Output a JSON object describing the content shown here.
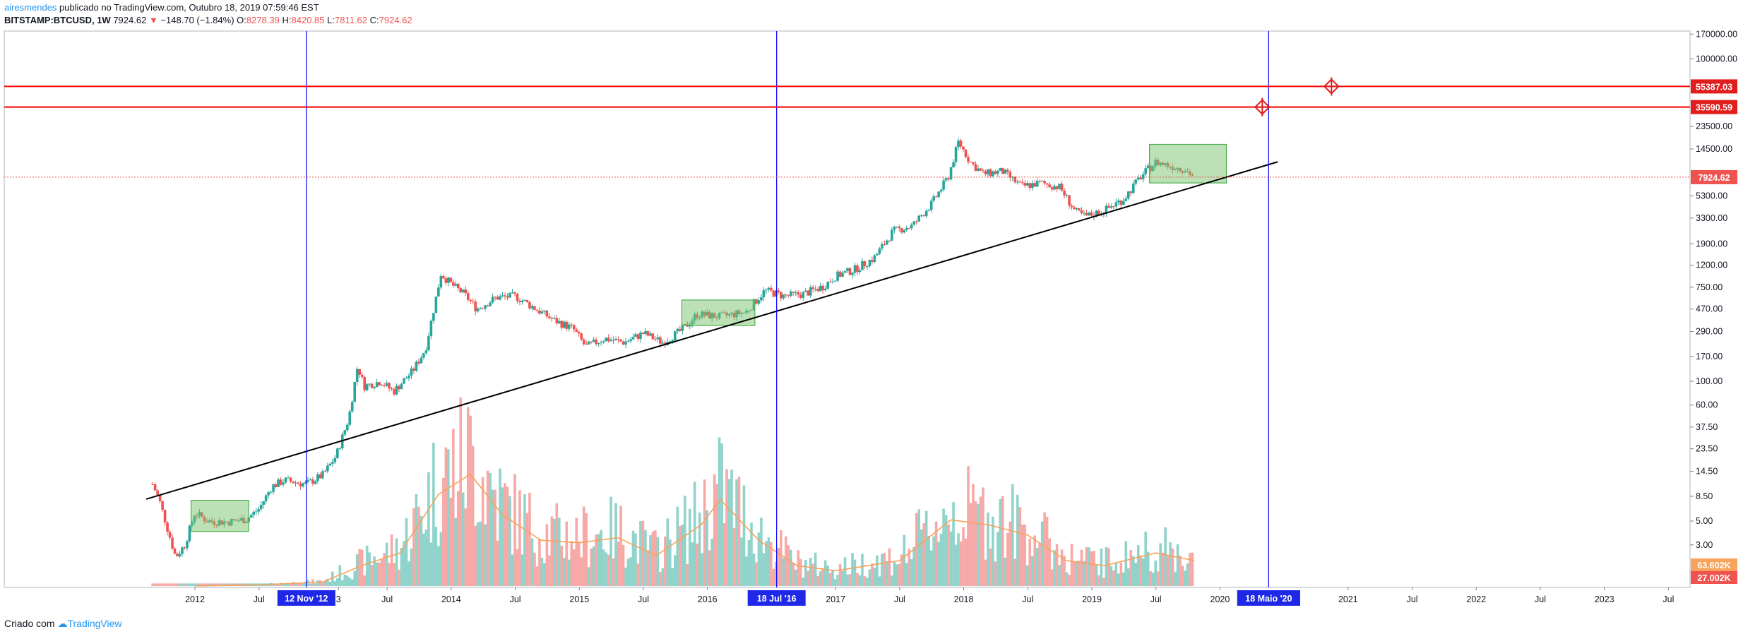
{
  "header": {
    "author": "airesmendes",
    "published": " publicado no TradingView.com, Outubro 18, 2019 07:59:46 EST",
    "symbol": "BITSTAMP:BTCUSD, 1W",
    "last": "7924.62",
    "change_arrow": "▼",
    "change": "−148.70 (−1.84%)",
    "o_label": "O:",
    "o": "8278.39",
    "h_label": "H:",
    "h": "8420.85",
    "l_label": "L:",
    "l": "7811.62",
    "c_label": "C:",
    "c": "7924.62"
  },
  "footer": {
    "text": "Criado com",
    "brand": "TradingView"
  },
  "colors": {
    "up": "#26a69a",
    "down": "#ef5350",
    "ma": "#f7a35c",
    "hline": "#ff0000",
    "vline": "#0000ff",
    "trend": "#000000",
    "box": "#7cc36e"
  },
  "chart_data": {
    "type": "candlestick",
    "symbol": "BITSTAMP:BTCUSD",
    "interval": "1W",
    "yscale": "log",
    "ylim": [
      0.9,
      200000
    ],
    "y_ticks": [
      "170000.00",
      "100000.00",
      "55387.03",
      "35590.59",
      "23500.00",
      "14500.00",
      "7924.62",
      "5300.00",
      "3300.00",
      "1900.00",
      "1200.00",
      "750.00",
      "470.00",
      "290.00",
      "170.00",
      "100.00",
      "60.00",
      "37.50",
      "23.50",
      "14.50",
      "8.50",
      "5.00",
      "3.00",
      "63.602K",
      "27.002K"
    ],
    "y_tick_values": [
      170000,
      100000,
      55387.03,
      35590.59,
      23500,
      14500,
      7924.62,
      5300,
      3300,
      1900,
      1200,
      750,
      470,
      290,
      170,
      100,
      60,
      37.5,
      23.5,
      14.5,
      8.5,
      5,
      3,
      null,
      null
    ],
    "x_ticks": [
      "2012",
      "Jul",
      "12 Nov '12",
      "3",
      "Jul",
      "2014",
      "Jul",
      "2015",
      "Jul",
      "2016",
      "18 Jul '16",
      "2017",
      "Jul",
      "2018",
      "Jul",
      "2019",
      "Jul",
      "2020",
      "18 Maio '20",
      "2021",
      "Jul",
      "2022",
      "Jul",
      "2023",
      "Jul"
    ],
    "x_tick_dates": [
      2012.0,
      2012.5,
      2012.87,
      2013.12,
      2013.5,
      2014.0,
      2014.5,
      2015.0,
      2015.5,
      2016.0,
      2016.54,
      2017.0,
      2017.5,
      2018.0,
      2018.5,
      2019.0,
      2019.5,
      2020.0,
      2020.38,
      2021.0,
      2021.5,
      2022.0,
      2022.5,
      2023.0,
      2023.5
    ],
    "highlighted_x_ticks": [
      "12 Nov '12",
      "18 Jul '16",
      "18 Maio '20"
    ],
    "price_path": [
      [
        2011.67,
        11.0
      ],
      [
        2011.72,
        8.0
      ],
      [
        2011.78,
        4.5
      ],
      [
        2011.85,
        2.3
      ],
      [
        2011.92,
        3.0
      ],
      [
        2012.0,
        6.0
      ],
      [
        2012.1,
        5.0
      ],
      [
        2012.25,
        4.9
      ],
      [
        2012.4,
        5.2
      ],
      [
        2012.5,
        6.5
      ],
      [
        2012.6,
        10.5
      ],
      [
        2012.7,
        12.0
      ],
      [
        2012.87,
        11.0
      ],
      [
        2013.0,
        13.5
      ],
      [
        2013.1,
        20.0
      ],
      [
        2013.2,
        45.0
      ],
      [
        2013.27,
        140.0
      ],
      [
        2013.32,
        90.0
      ],
      [
        2013.45,
        100.0
      ],
      [
        2013.55,
        80.0
      ],
      [
        2013.7,
        125.0
      ],
      [
        2013.8,
        200.0
      ],
      [
        2013.92,
        1000.0
      ],
      [
        2014.0,
        800.0
      ],
      [
        2014.1,
        650.0
      ],
      [
        2014.2,
        470.0
      ],
      [
        2014.35,
        600.0
      ],
      [
        2014.5,
        620.0
      ],
      [
        2014.65,
        480.0
      ],
      [
        2014.8,
        370.0
      ],
      [
        2014.95,
        310.0
      ],
      [
        2015.05,
        210.0
      ],
      [
        2015.2,
        250.0
      ],
      [
        2015.35,
        230.0
      ],
      [
        2015.5,
        280.0
      ],
      [
        2015.65,
        230.0
      ],
      [
        2015.8,
        300.0
      ],
      [
        2015.92,
        420.0
      ],
      [
        2016.1,
        400.0
      ],
      [
        2016.3,
        440.0
      ],
      [
        2016.45,
        700.0
      ],
      [
        2016.6,
        620.0
      ],
      [
        2016.75,
        650.0
      ],
      [
        2016.9,
        760.0
      ],
      [
        2017.0,
        950.0
      ],
      [
        2017.15,
        1100.0
      ],
      [
        2017.3,
        1400.0
      ],
      [
        2017.45,
        2500.0
      ],
      [
        2017.6,
        2800.0
      ],
      [
        2017.75,
        4500.0
      ],
      [
        2017.88,
        8000.0
      ],
      [
        2017.96,
        17000.0
      ],
      [
        2018.05,
        11000.0
      ],
      [
        2018.15,
        8500.0
      ],
      [
        2018.3,
        9000.0
      ],
      [
        2018.45,
        6500.0
      ],
      [
        2018.6,
        7000.0
      ],
      [
        2018.75,
        6400.0
      ],
      [
        2018.87,
        3800.0
      ],
      [
        2018.95,
        3400.0
      ],
      [
        2019.1,
        3900.0
      ],
      [
        2019.25,
        5000.0
      ],
      [
        2019.38,
        8000.0
      ],
      [
        2019.5,
        11000.0
      ],
      [
        2019.62,
        10000.0
      ],
      [
        2019.72,
        9500.0
      ],
      [
        2019.8,
        7924.62
      ]
    ],
    "volume_ma_path": [
      [
        2012.0,
        0.0
      ],
      [
        2012.5,
        0.2
      ],
      [
        2013.0,
        0.8
      ],
      [
        2013.3,
        4.0
      ],
      [
        2013.6,
        6.5
      ],
      [
        2013.9,
        18.0
      ],
      [
        2014.15,
        22.0
      ],
      [
        2014.4,
        14.0
      ],
      [
        2014.7,
        9.0
      ],
      [
        2015.0,
        8.5
      ],
      [
        2015.3,
        9.5
      ],
      [
        2015.6,
        6.0
      ],
      [
        2015.95,
        12.0
      ],
      [
        2016.1,
        17.0
      ],
      [
        2016.4,
        9.0
      ],
      [
        2016.7,
        4.0
      ],
      [
        2017.0,
        3.0
      ],
      [
        2017.5,
        5.0
      ],
      [
        2017.9,
        13.0
      ],
      [
        2018.2,
        12.0
      ],
      [
        2018.5,
        10.0
      ],
      [
        2018.8,
        5.0
      ],
      [
        2019.1,
        4.0
      ],
      [
        2019.5,
        6.5
      ],
      [
        2019.8,
        5.0
      ]
    ],
    "horizontal_levels": [
      {
        "value": 55387.03,
        "label": "55387.03"
      },
      {
        "value": 35590.59,
        "label": "35590.59"
      }
    ],
    "current_price": {
      "value": 7924.62,
      "label": "7924.62"
    },
    "vertical_markers": [
      {
        "date": 2012.87,
        "label": "12 Nov '12"
      },
      {
        "date": 2016.54,
        "label": "18 Jul '16"
      },
      {
        "date": 2020.38,
        "label": "18 Maio '20"
      }
    ],
    "trend_line": {
      "start": [
        2011.62,
        8.0
      ],
      "end": [
        2020.45,
        11000.0
      ]
    },
    "boxes": [
      {
        "x0": 2011.97,
        "x1": 2012.42,
        "y_low": 4.0,
        "y_high": 7.8
      },
      {
        "x0": 2015.8,
        "x1": 2016.37,
        "y_low": 330.0,
        "y_high": 570.0
      },
      {
        "x0": 2019.45,
        "x1": 2020.05,
        "y_low": 7000.0,
        "y_high": 16000.0
      }
    ],
    "target_markers": [
      {
        "date": 2020.87,
        "value": 55387.03
      },
      {
        "date": 2020.33,
        "value": 35590.59
      }
    ],
    "volume_labels": [
      {
        "label": "63.602K",
        "role": "volume-ma"
      },
      {
        "label": "27.002K",
        "role": "volume"
      }
    ]
  }
}
